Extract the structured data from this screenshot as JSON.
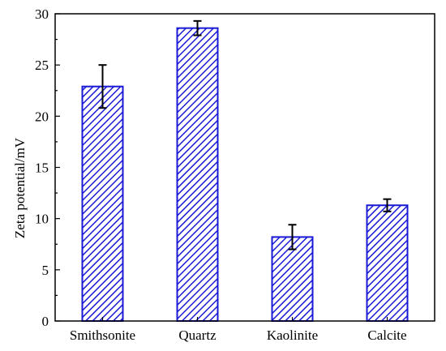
{
  "chart_data": {
    "type": "bar",
    "title": "",
    "xlabel": "",
    "ylabel": "Zeta potential/mV",
    "categories": [
      "Smithsonite",
      "Quartz",
      "Kaolinite",
      "Calcite"
    ],
    "values": [
      22.9,
      28.6,
      8.2,
      11.3
    ],
    "error": [
      2.1,
      0.7,
      1.2,
      0.6
    ],
    "ylim": [
      0,
      30
    ],
    "yticks": [
      0,
      5,
      10,
      15,
      20,
      25,
      30
    ],
    "grid": false,
    "bar_fill": "hatched diagonal",
    "colors": {
      "bar": "#1a1ad6",
      "axis": "#000000",
      "error_bar": "#000000"
    }
  }
}
